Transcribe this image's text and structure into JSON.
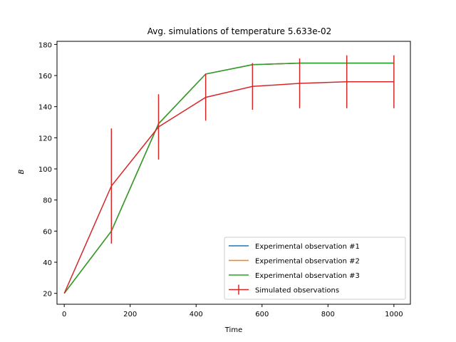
{
  "chart_data": {
    "type": "line",
    "title": "Avg. simulations of temperature 5.633e-02",
    "xlabel": "Time",
    "ylabel": "B",
    "xlim": [
      -22,
      1050
    ],
    "ylim": [
      13,
      182
    ],
    "x_ticks": [
      0,
      200,
      400,
      600,
      800,
      1000
    ],
    "y_ticks": [
      20,
      40,
      60,
      80,
      100,
      120,
      140,
      160,
      180
    ],
    "grid": false,
    "legend_position": "lower right",
    "x": [
      0,
      143,
      286,
      429,
      571,
      714,
      857,
      1000
    ],
    "series": [
      {
        "name": "Experimental observation #1",
        "color": "#1f77b4",
        "values": [
          20,
          60,
          129,
          161,
          167,
          168,
          168,
          168
        ]
      },
      {
        "name": "Experimental observation #2",
        "color": "#ff7f0e",
        "values": [
          20,
          60,
          129,
          161,
          167,
          168,
          168,
          168
        ]
      },
      {
        "name": "Experimental observation #3",
        "color": "#2ca02c",
        "values": [
          20,
          60,
          129,
          161,
          167,
          168,
          168,
          168
        ]
      },
      {
        "name": "Simulated observations",
        "color": "#d62728",
        "values": [
          20,
          89,
          127,
          146,
          153,
          155,
          156,
          156
        ],
        "error": [
          0,
          37,
          21,
          15,
          15,
          16,
          17,
          17
        ]
      }
    ]
  }
}
